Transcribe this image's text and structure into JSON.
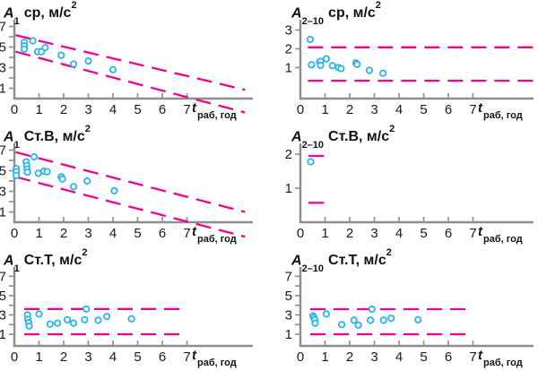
{
  "colors": {
    "point": "#2ab5e8",
    "bound": "#f0028e",
    "axis": "#8e8e8e",
    "text": "#1a1a1a"
  },
  "chart_data": [
    {
      "type": "scatter",
      "title_text": "A₁ ср, м/с²",
      "title_sym": "A",
      "title_sub": "1",
      "title_rest": "ср, м/с",
      "title_sup": "2",
      "xlabel_text": "tраб, год",
      "xlabel_sym": "t",
      "xlabel_sub": "раб, год",
      "xlim": [
        0,
        9.6
      ],
      "ylim": [
        0,
        7.65
      ],
      "xticks": [
        0,
        1,
        2,
        3,
        4,
        5,
        6,
        7
      ],
      "yticks": [
        1,
        2,
        3,
        4,
        5,
        6,
        7
      ],
      "ytick_labels": [
        1,
        3,
        5,
        7
      ],
      "points": [
        [
          0.4,
          5.45
        ],
        [
          0.4,
          5.1
        ],
        [
          0.4,
          4.8
        ],
        [
          0.75,
          5.6
        ],
        [
          0.95,
          4.55
        ],
        [
          1.1,
          4.55
        ],
        [
          1.25,
          4.95
        ],
        [
          1.9,
          4.2
        ],
        [
          2.4,
          3.35
        ],
        [
          3.0,
          3.65
        ],
        [
          4.0,
          2.8
        ]
      ],
      "bounds": [
        {
          "x1": 0.05,
          "y1": 6.15,
          "x2": 9.35,
          "y2": 0.85
        },
        {
          "x1": 0.05,
          "y1": 4.55,
          "x2": 9.35,
          "y2": -1.35
        }
      ]
    },
    {
      "type": "scatter",
      "title_text": "A₂₋₁₀ ср, м/с²",
      "title_sym": "A",
      "title_sub": "2–10",
      "title_rest": "ср, м/с",
      "title_sup": "2",
      "xlabel_text": "tраб, год",
      "xlabel_sym": "t",
      "xlabel_sub": "раб, год",
      "xlim": [
        0,
        9.5
      ],
      "ylim": [
        -0.65,
        3.55
      ],
      "xticks": [
        0,
        1,
        2,
        3,
        4,
        5,
        6,
        7
      ],
      "yticks": [
        1,
        2,
        3
      ],
      "ytick_labels": [
        1,
        2,
        3
      ],
      "points": [
        [
          0.4,
          2.5
        ],
        [
          0.45,
          1.15
        ],
        [
          0.78,
          1.3
        ],
        [
          0.82,
          1.33
        ],
        [
          0.82,
          1.12
        ],
        [
          1.05,
          1.47
        ],
        [
          1.3,
          1.1
        ],
        [
          1.55,
          1.0
        ],
        [
          1.65,
          0.95
        ],
        [
          2.25,
          1.25
        ],
        [
          2.3,
          1.17
        ],
        [
          2.8,
          0.85
        ],
        [
          3.35,
          0.7
        ]
      ],
      "bounds": [
        {
          "x1": 0.3,
          "y1": 2.08,
          "x2": 9.5,
          "y2": 2.08
        },
        {
          "x1": 0.3,
          "y1": 0.3,
          "x2": 9.5,
          "y2": 0.3
        }
      ]
    },
    {
      "type": "scatter",
      "title_text": "A₁ Ст.В, м/с²",
      "title_sym": "A",
      "title_sub": "1",
      "title_rest": "Ст.В, м/с",
      "title_sup": "2",
      "xlabel_text": "tраб, год",
      "xlabel_sym": "t",
      "xlabel_sub": "раб, год",
      "xlim": [
        0,
        9.6
      ],
      "ylim": [
        0,
        7.65
      ],
      "xticks": [
        0,
        1,
        2,
        3,
        4,
        5,
        6,
        7
      ],
      "yticks": [
        1,
        2,
        3,
        4,
        5,
        6,
        7
      ],
      "ytick_labels": [
        1,
        3,
        5,
        7
      ],
      "points": [
        [
          0.08,
          5.2
        ],
        [
          0.08,
          4.9
        ],
        [
          0.08,
          4.55
        ],
        [
          0.48,
          5.85
        ],
        [
          0.5,
          5.5
        ],
        [
          0.52,
          5.15
        ],
        [
          0.53,
          4.85
        ],
        [
          0.8,
          6.35
        ],
        [
          0.97,
          4.75
        ],
        [
          1.2,
          4.95
        ],
        [
          1.33,
          4.9
        ],
        [
          1.9,
          4.4
        ],
        [
          1.95,
          4.2
        ],
        [
          2.4,
          3.45
        ],
        [
          2.95,
          4.0
        ],
        [
          4.05,
          3.05
        ]
      ],
      "bounds": [
        {
          "x1": 0.05,
          "y1": 6.8,
          "x2": 9.35,
          "y2": 1.0
        },
        {
          "x1": 0.05,
          "y1": 4.4,
          "x2": 9.35,
          "y2": -1.4
        }
      ]
    },
    {
      "type": "scatter",
      "title_text": "A₂₋₁₀ Ст.В, м/с²",
      "title_sym": "A",
      "title_sub": "2–10",
      "title_rest": "Ст.В, м/с",
      "title_sup": "2",
      "xlabel_text": "tраб, год",
      "xlabel_sym": "t",
      "xlabel_sub": "раб, год",
      "xlim": [
        0,
        9.5
      ],
      "ylim": [
        0,
        2.32
      ],
      "xticks": [
        0,
        1,
        2,
        3,
        4,
        5,
        6,
        7
      ],
      "yticks": [
        1,
        2
      ],
      "ytick_labels": [
        1,
        2
      ],
      "points": [
        [
          0.42,
          1.78
        ]
      ],
      "bounds": [
        {
          "x1": 0.33,
          "y1": 1.95,
          "x2": 1.07,
          "y2": 1.95
        },
        {
          "x1": 0.33,
          "y1": 0.57,
          "x2": 1.07,
          "y2": 0.57
        }
      ]
    },
    {
      "type": "scatter",
      "title_text": "A₁ Ст.Т, м/с²",
      "title_sym": "A",
      "title_sub": "1",
      "title_rest": "Ст.Т, м/с",
      "title_sup": "2",
      "xlabel_text": "tраб, год",
      "xlabel_sym": "t",
      "xlabel_sub": "раб, год",
      "xlim": [
        0,
        9.6
      ],
      "ylim": [
        -0.2,
        7.95
      ],
      "xticks": [
        0,
        1,
        2,
        3,
        4,
        5,
        6,
        7
      ],
      "yticks": [
        1,
        2,
        3,
        4,
        5,
        6,
        7
      ],
      "ytick_labels": [
        1,
        3,
        5,
        7
      ],
      "points": [
        [
          0.53,
          3.0
        ],
        [
          0.55,
          2.55
        ],
        [
          0.58,
          2.2
        ],
        [
          0.6,
          1.85
        ],
        [
          1.0,
          3.1
        ],
        [
          1.45,
          2.05
        ],
        [
          1.75,
          2.15
        ],
        [
          2.15,
          2.5
        ],
        [
          2.4,
          2.15
        ],
        [
          2.85,
          2.5
        ],
        [
          2.92,
          3.62
        ],
        [
          3.4,
          2.45
        ],
        [
          3.75,
          2.85
        ],
        [
          4.75,
          2.6
        ]
      ],
      "bounds": [
        {
          "x1": 0.4,
          "y1": 3.62,
          "x2": 7.0,
          "y2": 3.62
        },
        {
          "x1": 0.4,
          "y1": 1.0,
          "x2": 7.0,
          "y2": 1.0
        }
      ]
    },
    {
      "type": "scatter",
      "title_text": "A₂₋₁₀ Ст.Т, м/с²",
      "title_sym": "A",
      "title_sub": "2–10",
      "title_rest": "Ст.Т, м/с",
      "title_sup": "2",
      "xlabel_text": "tраб, год",
      "xlabel_sym": "t",
      "xlabel_sub": "раб, год",
      "xlim": [
        0,
        9.5
      ],
      "ylim": [
        -0.2,
        7.95
      ],
      "xticks": [
        0,
        1,
        2,
        3,
        4,
        5,
        6,
        7
      ],
      "yticks": [
        1,
        2,
        3,
        4,
        5,
        6,
        7
      ],
      "ytick_labels": [
        1,
        3,
        5,
        7
      ],
      "points": [
        [
          0.51,
          2.9
        ],
        [
          0.55,
          2.72
        ],
        [
          0.58,
          2.5
        ],
        [
          0.6,
          2.15
        ],
        [
          1.05,
          3.1
        ],
        [
          1.68,
          2.0
        ],
        [
          2.17,
          2.45
        ],
        [
          2.35,
          1.95
        ],
        [
          2.84,
          2.45
        ],
        [
          2.9,
          3.6
        ],
        [
          3.37,
          2.45
        ],
        [
          3.68,
          2.65
        ],
        [
          4.77,
          2.5
        ]
      ],
      "bounds": [
        {
          "x1": 0.4,
          "y1": 3.6,
          "x2": 7.0,
          "y2": 3.6
        },
        {
          "x1": 0.4,
          "y1": 1.0,
          "x2": 7.0,
          "y2": 1.0
        }
      ]
    }
  ]
}
